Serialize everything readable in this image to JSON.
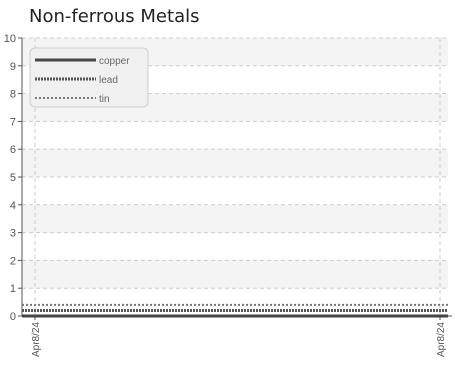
{
  "chart_data": {
    "type": "line",
    "title": "Non-ferrous Metals",
    "xlabel": "",
    "ylabel": "",
    "x": [
      "Apr8/24",
      "Apr8/24"
    ],
    "x_tick_labels": [
      "Apr8/24",
      "Apr8/24"
    ],
    "ylim": [
      0,
      10
    ],
    "y_ticks": [
      0,
      1,
      2,
      3,
      4,
      5,
      6,
      7,
      8,
      9,
      10
    ],
    "grid": true,
    "legend_position": "top-left",
    "series": [
      {
        "name": "copper",
        "values": [
          0,
          0
        ],
        "color": "#444444",
        "style": "solid"
      },
      {
        "name": "lead",
        "values": [
          0.2,
          0.2
        ],
        "color": "#555555",
        "style": "dotted"
      },
      {
        "name": "tin",
        "values": [
          0.4,
          0.4
        ],
        "color": "#777777",
        "style": "dashed"
      }
    ]
  }
}
